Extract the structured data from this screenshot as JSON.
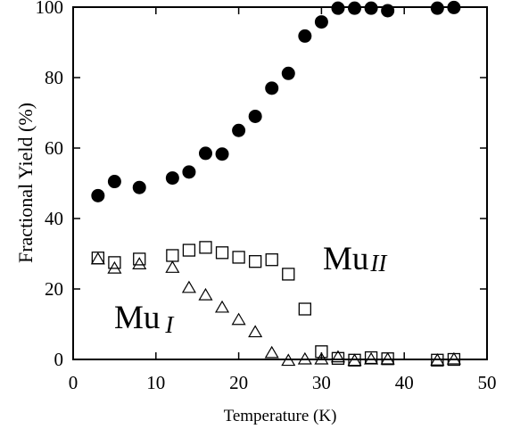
{
  "chart_data": {
    "type": "scatter",
    "xlabel": "Temperature (K)",
    "ylabel": "Fractional Yield (%)",
    "xlim": [
      0,
      50
    ],
    "ylim": [
      0,
      100
    ],
    "xticks": [
      "0",
      "10",
      "20",
      "30",
      "40",
      "50"
    ],
    "yticks": [
      "0",
      "20",
      "40",
      "60",
      "80",
      "100"
    ],
    "grid": false,
    "annotations": [
      {
        "base": "Mu",
        "sub": "I",
        "series": "Mu_I"
      },
      {
        "base": "Mu",
        "sub": "II",
        "series": "Mu_II"
      }
    ],
    "series": [
      {
        "marker": "filled-circle",
        "points": [
          [
            3,
            46.5
          ],
          [
            5,
            50.5
          ],
          [
            8,
            48.8
          ],
          [
            12,
            51.5
          ],
          [
            14,
            53.2
          ],
          [
            16,
            58.5
          ],
          [
            18,
            58.3
          ],
          [
            20,
            65
          ],
          [
            22,
            69
          ],
          [
            24,
            77
          ],
          [
            26,
            81.2
          ],
          [
            28,
            91.8
          ],
          [
            30,
            95.8
          ],
          [
            32,
            99.7
          ],
          [
            34,
            99.7
          ],
          [
            36,
            99.7
          ],
          [
            38,
            99
          ],
          [
            44,
            99.7
          ],
          [
            46,
            99.9
          ]
        ]
      },
      {
        "marker": "open-square",
        "points": [
          [
            3,
            28.8
          ],
          [
            5,
            27.5
          ],
          [
            8,
            28.5
          ],
          [
            12,
            29.5
          ],
          [
            14,
            31
          ],
          [
            16,
            31.8
          ],
          [
            18,
            30.3
          ],
          [
            20,
            29
          ],
          [
            22,
            27.8
          ],
          [
            24,
            28.3
          ],
          [
            26,
            24.2
          ],
          [
            28,
            14.3
          ],
          [
            30,
            2.2
          ],
          [
            32,
            0.3
          ],
          [
            34,
            -0.2
          ],
          [
            36,
            0.5
          ],
          [
            38,
            0.2
          ],
          [
            44,
            -0.2
          ],
          [
            46,
            0
          ]
        ]
      },
      {
        "marker": "open-triangle",
        "points": [
          [
            3,
            28.4
          ],
          [
            5,
            25.8
          ],
          [
            8,
            27
          ],
          [
            12,
            26
          ],
          [
            14,
            20.3
          ],
          [
            16,
            18.2
          ],
          [
            18,
            14.7
          ],
          [
            20,
            11.2
          ],
          [
            22,
            7.7
          ],
          [
            24,
            1.8
          ],
          [
            26,
            -0.4
          ],
          [
            28,
            0
          ],
          [
            30,
            0
          ],
          [
            32,
            0.6
          ],
          [
            34,
            -0.4
          ],
          [
            36,
            0
          ],
          [
            38,
            0
          ],
          [
            44,
            -0.3
          ],
          [
            46,
            0
          ]
        ]
      }
    ]
  }
}
